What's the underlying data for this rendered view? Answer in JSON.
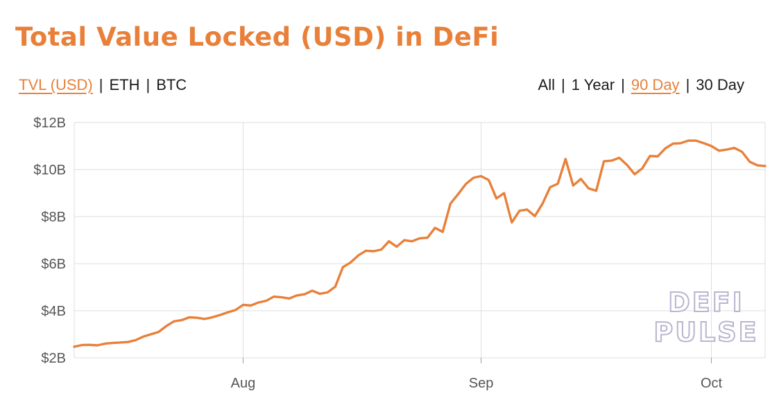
{
  "title": "Total Value Locked (USD) in DeFi",
  "currency_toggle": [
    {
      "label": "TVL (USD)",
      "active": true
    },
    {
      "label": "ETH",
      "active": false
    },
    {
      "label": "BTC",
      "active": false
    }
  ],
  "range_toggle": [
    {
      "label": "All",
      "active": false
    },
    {
      "label": "1 Year",
      "active": false
    },
    {
      "label": "90 Day",
      "active": true
    },
    {
      "label": "30 Day",
      "active": false
    }
  ],
  "separator": "|",
  "watermark": [
    "DEFI",
    "PULSE"
  ],
  "colors": {
    "accent": "#e8803a",
    "line": "#e8803a",
    "grid": "#dedede",
    "text": "#1a1a1a"
  },
  "chart_data": {
    "type": "line",
    "title": "",
    "xlabel": "",
    "ylabel": "",
    "x_tick_labels": [
      "Aug",
      "Sep",
      "Oct"
    ],
    "y_tick_labels": [
      "$2B",
      "$4B",
      "$6B",
      "$8B",
      "$10B",
      "$12B"
    ],
    "y_ticks": [
      2,
      4,
      6,
      8,
      10,
      12
    ],
    "ylim": [
      2,
      12
    ],
    "xlim": [
      "2020-07-10",
      "2020-10-08"
    ],
    "grid": true,
    "y_unit": "USD billions",
    "series": [
      {
        "x": [
          "2020-07-10",
          "2020-07-11",
          "2020-07-12",
          "2020-07-13",
          "2020-07-14",
          "2020-07-15",
          "2020-07-16",
          "2020-07-17",
          "2020-07-18",
          "2020-07-19",
          "2020-07-20",
          "2020-07-21",
          "2020-07-22",
          "2020-07-23",
          "2020-07-24",
          "2020-07-25",
          "2020-07-26",
          "2020-07-27",
          "2020-07-28",
          "2020-07-29",
          "2020-07-30",
          "2020-07-31",
          "2020-08-01",
          "2020-08-02",
          "2020-08-03",
          "2020-08-04",
          "2020-08-05",
          "2020-08-06",
          "2020-08-07",
          "2020-08-08",
          "2020-08-09",
          "2020-08-10",
          "2020-08-11",
          "2020-08-12",
          "2020-08-13",
          "2020-08-14",
          "2020-08-15",
          "2020-08-16",
          "2020-08-17",
          "2020-08-18",
          "2020-08-19",
          "2020-08-20",
          "2020-08-21",
          "2020-08-22",
          "2020-08-23",
          "2020-08-24",
          "2020-08-25",
          "2020-08-26",
          "2020-08-27",
          "2020-08-28",
          "2020-08-29",
          "2020-08-30",
          "2020-08-31",
          "2020-09-01",
          "2020-09-02",
          "2020-09-03",
          "2020-09-04",
          "2020-09-05",
          "2020-09-06",
          "2020-09-07",
          "2020-09-08",
          "2020-09-09",
          "2020-09-10",
          "2020-09-11",
          "2020-09-12",
          "2020-09-13",
          "2020-09-14",
          "2020-09-15",
          "2020-09-16",
          "2020-09-17",
          "2020-09-18",
          "2020-09-19",
          "2020-09-20",
          "2020-09-21",
          "2020-09-22",
          "2020-09-23",
          "2020-09-24",
          "2020-09-25",
          "2020-09-26",
          "2020-09-27",
          "2020-09-28",
          "2020-09-29",
          "2020-09-30",
          "2020-10-01",
          "2020-10-02",
          "2020-10-03",
          "2020-10-04",
          "2020-10-05",
          "2020-10-06",
          "2020-10-07",
          "2020-10-08"
        ],
        "values": [
          2.47,
          2.54,
          2.55,
          2.53,
          2.6,
          2.63,
          2.65,
          2.67,
          2.75,
          2.9,
          3.0,
          3.1,
          3.35,
          3.55,
          3.6,
          3.72,
          3.7,
          3.65,
          3.72,
          3.82,
          3.93,
          4.03,
          4.25,
          4.22,
          4.35,
          4.42,
          4.6,
          4.57,
          4.52,
          4.65,
          4.7,
          4.85,
          4.72,
          4.78,
          5.02,
          5.85,
          6.05,
          6.35,
          6.55,
          6.53,
          6.6,
          6.95,
          6.72,
          7.0,
          6.95,
          7.08,
          7.1,
          7.52,
          7.35,
          8.55,
          8.95,
          9.38,
          9.65,
          9.72,
          9.55,
          8.77,
          9.0,
          7.75,
          8.25,
          8.3,
          8.02,
          8.55,
          9.25,
          9.4,
          10.45,
          9.32,
          9.6,
          9.2,
          9.1,
          10.35,
          10.38,
          10.5,
          10.2,
          9.8,
          10.05,
          10.58,
          10.56,
          10.9,
          11.1,
          11.12,
          11.23,
          11.23,
          11.12,
          11.0,
          10.8,
          10.85,
          10.92,
          10.75,
          10.33,
          10.18,
          10.15
        ]
      }
    ]
  }
}
